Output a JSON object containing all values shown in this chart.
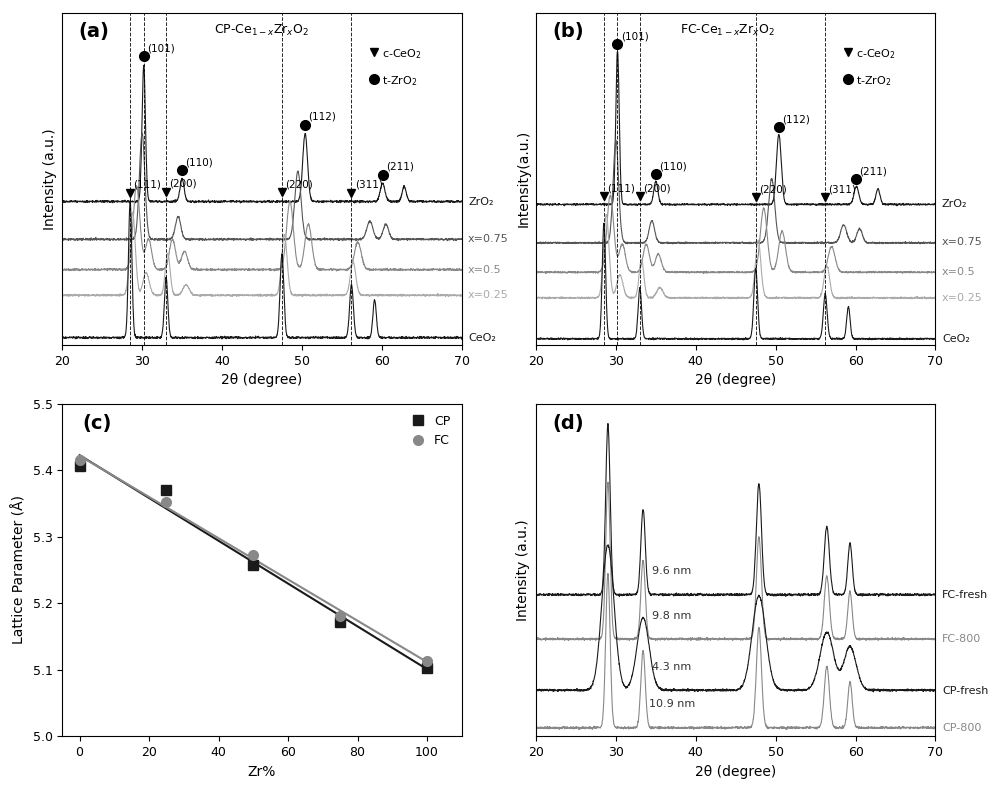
{
  "fig_size": [
    10.0,
    7.91
  ],
  "dpi": 100,
  "bg_color": "#ffffff",
  "panel_a": {
    "title": "CP-Ce$_{1-x}$Zr$_x$O$_2$",
    "label": "(a)",
    "xlabel": "2θ (degree)",
    "ylabel": "Intensity (a.u.)",
    "xlim": [
      20,
      70
    ],
    "dashed_lines": [
      28.5,
      30.2,
      33.0,
      47.5,
      56.2
    ],
    "curve_labels": [
      "ZrO₂",
      "x=0.75",
      "x=0.5",
      "x=0.25",
      "CeO₂"
    ],
    "curve_colors": [
      "#1a1a1a",
      "#555555",
      "#888888",
      "#aaaaaa",
      "#1a1a1a"
    ],
    "markers_triangle": [
      {
        "x": 28.5,
        "label": "(111)"
      },
      {
        "x": 33.0,
        "label": "(200)"
      },
      {
        "x": 47.5,
        "label": "(220)"
      },
      {
        "x": 56.2,
        "label": "(311)"
      }
    ],
    "markers_circle": [
      {
        "x": 30.2,
        "label": "(101)"
      },
      {
        "x": 35.0,
        "label": "(110)"
      },
      {
        "x": 50.4,
        "label": "(112)"
      },
      {
        "x": 60.1,
        "label": "(211)"
      }
    ]
  },
  "panel_b": {
    "title": "FC-Ce$_{1-x}$Zr$_x$O$_2$",
    "label": "(b)",
    "xlabel": "2θ (degree)",
    "ylabel": "Intensity(a.u.)",
    "xlim": [
      20,
      70
    ],
    "dashed_lines": [
      28.5,
      30.2,
      33.0,
      47.5,
      56.2
    ],
    "curve_labels": [
      "ZrO₂",
      "x=0.75",
      "x=0.5",
      "x=0.25",
      "CeO₂"
    ],
    "curve_colors": [
      "#1a1a1a",
      "#555555",
      "#888888",
      "#aaaaaa",
      "#1a1a1a"
    ]
  },
  "panel_c": {
    "label": "(c)",
    "xlabel": "Zr%",
    "ylabel": "Lattice Parameter (Å)",
    "xlim": [
      -5,
      110
    ],
    "ylim": [
      5.0,
      5.5
    ],
    "yticks": [
      5.0,
      5.1,
      5.2,
      5.3,
      5.4,
      5.5
    ],
    "xticks": [
      0,
      20,
      40,
      60,
      80,
      100
    ],
    "cp_x": [
      0,
      25,
      50,
      75,
      100
    ],
    "cp_y": [
      5.406,
      5.37,
      5.257,
      5.172,
      5.103
    ],
    "fc_x": [
      0,
      25,
      50,
      75,
      100
    ],
    "fc_y": [
      5.415,
      5.352,
      5.272,
      5.181,
      5.113
    ],
    "cp_color": "#1a1a1a",
    "fc_color": "#888888"
  },
  "panel_d": {
    "label": "(d)",
    "xlabel": "2θ (degree)",
    "ylabel": "Intensity (a.u.)",
    "xlim": [
      20,
      70
    ],
    "curve_labels": [
      "FC-fresh",
      "FC-800",
      "CP-fresh",
      "CP-800"
    ],
    "curve_colors": [
      "#1a1a1a",
      "#888888",
      "#1a1a1a",
      "#888888"
    ],
    "size_labels": [
      "9.6 nm",
      "9.8 nm",
      "4.3 nm",
      "10.9 nm"
    ]
  }
}
